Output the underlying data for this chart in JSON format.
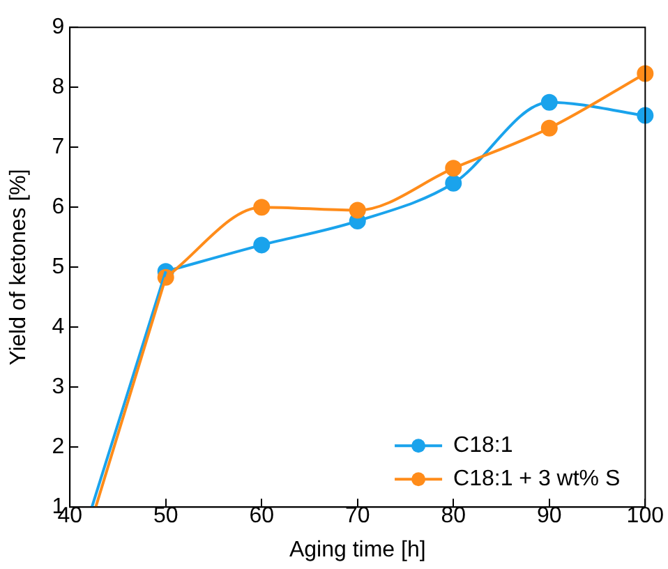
{
  "chart_data": {
    "type": "line",
    "xlabel": "Aging time [h]",
    "ylabel": "Yield of ketones [%]",
    "xlim": [
      40,
      100
    ],
    "xticks": [
      40,
      50,
      60,
      70,
      80,
      90,
      100
    ],
    "ylim": [
      1,
      9
    ],
    "yticks": [
      1,
      2,
      3,
      4,
      5,
      6,
      7,
      8,
      9
    ],
    "grid": false,
    "legend": "bottom right",
    "marker": "circle",
    "line_style": "solid",
    "series": [
      {
        "name": "C18:1",
        "color": "#1aa3ec",
        "x": [
          50,
          60,
          70,
          80,
          90,
          100
        ],
        "values": [
          4.93,
          5.37,
          5.77,
          6.4,
          7.75,
          7.53
        ]
      },
      {
        "name": "C18:1 + 3 wt% S",
        "color": "#ff8c1a",
        "x": [
          50,
          60,
          70,
          80,
          90,
          100
        ],
        "values": [
          4.83,
          6.0,
          5.95,
          6.65,
          7.32,
          8.23
        ]
      },
      {
        "color": "#1aa3ec",
        "marker": "none",
        "x": [
          42.3,
          50
        ],
        "values": [
          1,
          4.93
        ]
      },
      {
        "color": "#ff8c1a",
        "marker": "none",
        "x": [
          42.7,
          50
        ],
        "values": [
          1,
          4.83
        ]
      }
    ]
  }
}
